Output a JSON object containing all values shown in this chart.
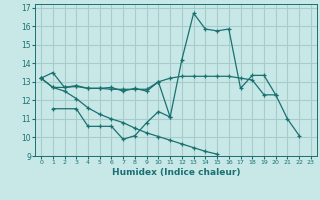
{
  "xlabel": "Humidex (Indice chaleur)",
  "ylabel": "",
  "bg_color": "#c8e8e8",
  "line_color": "#1a7070",
  "grid_color": "#a8cccc",
  "xlim": [
    -0.5,
    23.5
  ],
  "ylim": [
    9,
    17.2
  ],
  "xticks": [
    0,
    1,
    2,
    3,
    4,
    5,
    6,
    7,
    8,
    9,
    10,
    11,
    12,
    13,
    14,
    15,
    16,
    17,
    18,
    19,
    20,
    21,
    22,
    23
  ],
  "yticks": [
    9,
    10,
    11,
    12,
    13,
    14,
    15,
    16,
    17
  ],
  "series": [
    {
      "x": [
        0,
        1,
        2,
        3,
        4,
        5,
        6,
        7,
        8,
        9,
        10,
        11,
        12,
        13,
        14,
        15,
        16,
        17,
        18,
        19,
        20,
        21,
        22,
        23
      ],
      "y": [
        13.2,
        13.5,
        12.7,
        12.8,
        12.65,
        12.65,
        12.7,
        12.5,
        12.65,
        12.5,
        13.0,
        11.1,
        14.2,
        16.7,
        15.85,
        15.75,
        15.85,
        12.65,
        13.35,
        13.35,
        12.3,
        11.0,
        10.1,
        null
      ]
    },
    {
      "x": [
        0,
        1,
        2,
        3,
        4,
        5,
        6,
        7,
        8,
        9,
        10,
        11,
        12,
        13,
        14,
        15,
        16,
        17,
        18,
        19,
        20,
        21,
        22,
        23
      ],
      "y": [
        13.2,
        12.7,
        12.7,
        12.75,
        12.65,
        12.65,
        12.6,
        12.6,
        12.6,
        12.6,
        13.0,
        13.2,
        13.3,
        13.3,
        13.3,
        13.3,
        13.3,
        13.2,
        13.1,
        12.3,
        12.3,
        null,
        null,
        null
      ]
    },
    {
      "x": [
        1,
        3,
        4,
        5,
        6,
        7,
        8,
        9,
        10,
        11
      ],
      "y": [
        11.55,
        11.55,
        10.6,
        10.6,
        10.6,
        9.9,
        10.1,
        10.8,
        11.4,
        11.1
      ]
    },
    {
      "x": [
        0,
        1,
        2,
        3,
        4,
        5,
        6,
        7,
        8,
        9,
        10,
        11,
        12,
        13,
        14,
        15,
        16,
        17,
        18,
        19,
        20,
        21,
        22,
        23
      ],
      "y": [
        13.2,
        12.7,
        12.5,
        12.1,
        11.6,
        11.25,
        11.0,
        10.8,
        10.5,
        10.25,
        10.05,
        9.85,
        9.65,
        9.45,
        9.25,
        9.1,
        null,
        null,
        null,
        null,
        null,
        null,
        null,
        null
      ]
    }
  ]
}
